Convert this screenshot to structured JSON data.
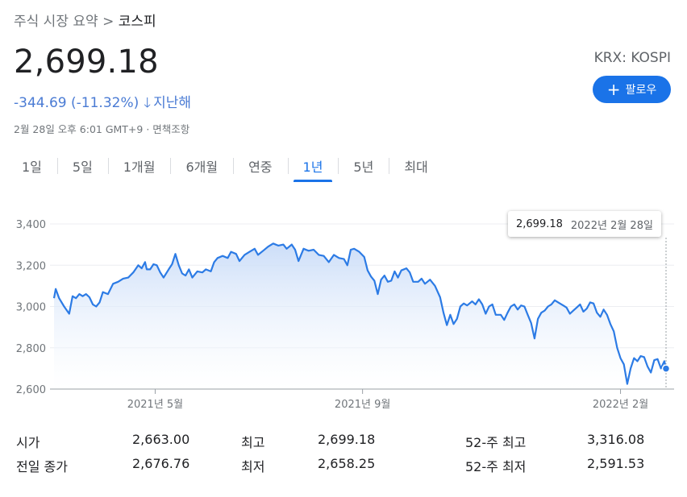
{
  "breadcrumb": {
    "parent": "주식 시장 요약",
    "separator": ">",
    "current": "코스피"
  },
  "price": "2,699.18",
  "exchange": "KRX: KOSPI",
  "change": {
    "text": "-344.69 (-11.32%)",
    "period": "지난해",
    "color": "#4a7bd4"
  },
  "follow": {
    "label": "팔로우"
  },
  "timestamp": "2월 28일 오후 6:01 GMT+9 · 면책조항",
  "tabs": [
    "1일",
    "5일",
    "1개월",
    "6개월",
    "연중",
    "1년",
    "5년",
    "최대"
  ],
  "active_tab": "1년",
  "tooltip": {
    "value": "2,699.18",
    "date": "2022년 2월 28일"
  },
  "colors": {
    "accent": "#1a73e8",
    "line": "#2c7be5",
    "fill": "#d6e6fb"
  },
  "stats": {
    "open_label": "시가",
    "open": "2,663.00",
    "prev_close_label": "전일 종가",
    "prev_close": "2,676.76",
    "high_label": "최고",
    "high": "2,699.18",
    "low_label": "최저",
    "low": "2,658.25",
    "high52_label": "52-주 최고",
    "high52": "3,316.08",
    "low52_label": "52-주 최저",
    "low52": "2,591.53"
  },
  "chart_data": {
    "type": "area",
    "x_unit": "days since 2021-03-02",
    "ylim": [
      2600,
      3400
    ],
    "yticks": [
      2600,
      2800,
      3000,
      3200,
      3400
    ],
    "ytick_labels": [
      "2,600",
      "2,800",
      "3,000",
      "3,200",
      "3,400"
    ],
    "xticks": [
      {
        "label": "2021년 5월",
        "x": 60
      },
      {
        "label": "2021년 9월",
        "x": 183
      },
      {
        "label": "2022년 2월",
        "x": 336
      }
    ],
    "x_end": 363,
    "grid": true,
    "series": [
      {
        "name": "코스피",
        "points": [
          [
            0,
            3040
          ],
          [
            1,
            3085
          ],
          [
            3,
            3040
          ],
          [
            6,
            3000
          ],
          [
            9,
            2965
          ],
          [
            11,
            3050
          ],
          [
            13,
            3040
          ],
          [
            15,
            3060
          ],
          [
            17,
            3050
          ],
          [
            19,
            3060
          ],
          [
            21,
            3045
          ],
          [
            23,
            3010
          ],
          [
            25,
            3000
          ],
          [
            27,
            3020
          ],
          [
            29,
            3070
          ],
          [
            32,
            3060
          ],
          [
            35,
            3110
          ],
          [
            38,
            3120
          ],
          [
            41,
            3135
          ],
          [
            44,
            3140
          ],
          [
            47,
            3165
          ],
          [
            50,
            3200
          ],
          [
            52,
            3185
          ],
          [
            54,
            3215
          ],
          [
            55,
            3180
          ],
          [
            57,
            3180
          ],
          [
            59,
            3205
          ],
          [
            61,
            3200
          ],
          [
            63,
            3165
          ],
          [
            65,
            3140
          ],
          [
            68,
            3180
          ],
          [
            70,
            3205
          ],
          [
            72,
            3255
          ],
          [
            74,
            3200
          ],
          [
            76,
            3160
          ],
          [
            78,
            3150
          ],
          [
            80,
            3180
          ],
          [
            82,
            3140
          ],
          [
            85,
            3170
          ],
          [
            88,
            3165
          ],
          [
            90,
            3180
          ],
          [
            93,
            3170
          ],
          [
            95,
            3215
          ],
          [
            97,
            3235
          ],
          [
            100,
            3245
          ],
          [
            103,
            3235
          ],
          [
            105,
            3265
          ],
          [
            108,
            3255
          ],
          [
            110,
            3220
          ],
          [
            113,
            3250
          ],
          [
            116,
            3265
          ],
          [
            119,
            3280
          ],
          [
            121,
            3250
          ],
          [
            124,
            3270
          ],
          [
            127,
            3290
          ],
          [
            130,
            3305
          ],
          [
            133,
            3295
          ],
          [
            136,
            3300
          ],
          [
            138,
            3280
          ],
          [
            141,
            3300
          ],
          [
            143,
            3275
          ],
          [
            145,
            3220
          ],
          [
            148,
            3280
          ],
          [
            151,
            3270
          ],
          [
            154,
            3275
          ],
          [
            157,
            3250
          ],
          [
            160,
            3245
          ],
          [
            163,
            3215
          ],
          [
            166,
            3250
          ],
          [
            169,
            3235
          ],
          [
            172,
            3230
          ],
          [
            174,
            3200
          ],
          [
            176,
            3275
          ],
          [
            178,
            3280
          ],
          [
            181,
            3265
          ],
          [
            184,
            3240
          ],
          [
            186,
            3175
          ],
          [
            188,
            3145
          ],
          [
            190,
            3125
          ],
          [
            192,
            3060
          ],
          [
            194,
            3130
          ],
          [
            196,
            3150
          ],
          [
            198,
            3120
          ],
          [
            200,
            3125
          ],
          [
            202,
            3170
          ],
          [
            204,
            3140
          ],
          [
            206,
            3175
          ],
          [
            209,
            3185
          ],
          [
            211,
            3165
          ],
          [
            213,
            3120
          ],
          [
            216,
            3120
          ],
          [
            218,
            3135
          ],
          [
            220,
            3110
          ],
          [
            223,
            3130
          ],
          [
            226,
            3100
          ],
          [
            229,
            3045
          ],
          [
            231,
            2970
          ],
          [
            233,
            2910
          ],
          [
            235,
            2960
          ],
          [
            237,
            2915
          ],
          [
            239,
            2940
          ],
          [
            241,
            3000
          ],
          [
            243,
            3015
          ],
          [
            245,
            3005
          ],
          [
            248,
            3025
          ],
          [
            250,
            3010
          ],
          [
            252,
            3035
          ],
          [
            254,
            3010
          ],
          [
            256,
            2965
          ],
          [
            258,
            3000
          ],
          [
            260,
            3010
          ],
          [
            262,
            2960
          ],
          [
            265,
            2960
          ],
          [
            267,
            2935
          ],
          [
            269,
            2970
          ],
          [
            271,
            3000
          ],
          [
            273,
            3010
          ],
          [
            275,
            2985
          ],
          [
            277,
            3005
          ],
          [
            279,
            3000
          ],
          [
            281,
            2960
          ],
          [
            283,
            2920
          ],
          [
            285,
            2845
          ],
          [
            287,
            2940
          ],
          [
            289,
            2970
          ],
          [
            291,
            2980
          ],
          [
            293,
            3000
          ],
          [
            295,
            3010
          ],
          [
            297,
            3030
          ],
          [
            300,
            3015
          ],
          [
            302,
            3005
          ],
          [
            304,
            2995
          ],
          [
            306,
            2965
          ],
          [
            308,
            2980
          ],
          [
            310,
            2995
          ],
          [
            312,
            3010
          ],
          [
            314,
            2975
          ],
          [
            316,
            2990
          ],
          [
            318,
            3020
          ],
          [
            320,
            3015
          ],
          [
            322,
            2970
          ],
          [
            324,
            2950
          ],
          [
            326,
            2985
          ],
          [
            328,
            2960
          ],
          [
            330,
            2915
          ],
          [
            332,
            2880
          ],
          [
            334,
            2800
          ],
          [
            336,
            2750
          ],
          [
            338,
            2720
          ],
          [
            340,
            2625
          ],
          [
            342,
            2700
          ],
          [
            344,
            2750
          ],
          [
            346,
            2735
          ],
          [
            348,
            2760
          ],
          [
            350,
            2755
          ],
          [
            352,
            2710
          ],
          [
            354,
            2680
          ],
          [
            356,
            2740
          ],
          [
            358,
            2745
          ],
          [
            360,
            2700
          ],
          [
            362,
            2735
          ],
          [
            363,
            2700
          ]
        ]
      }
    ],
    "last_point": {
      "x": 363,
      "y": 2699.18
    }
  }
}
